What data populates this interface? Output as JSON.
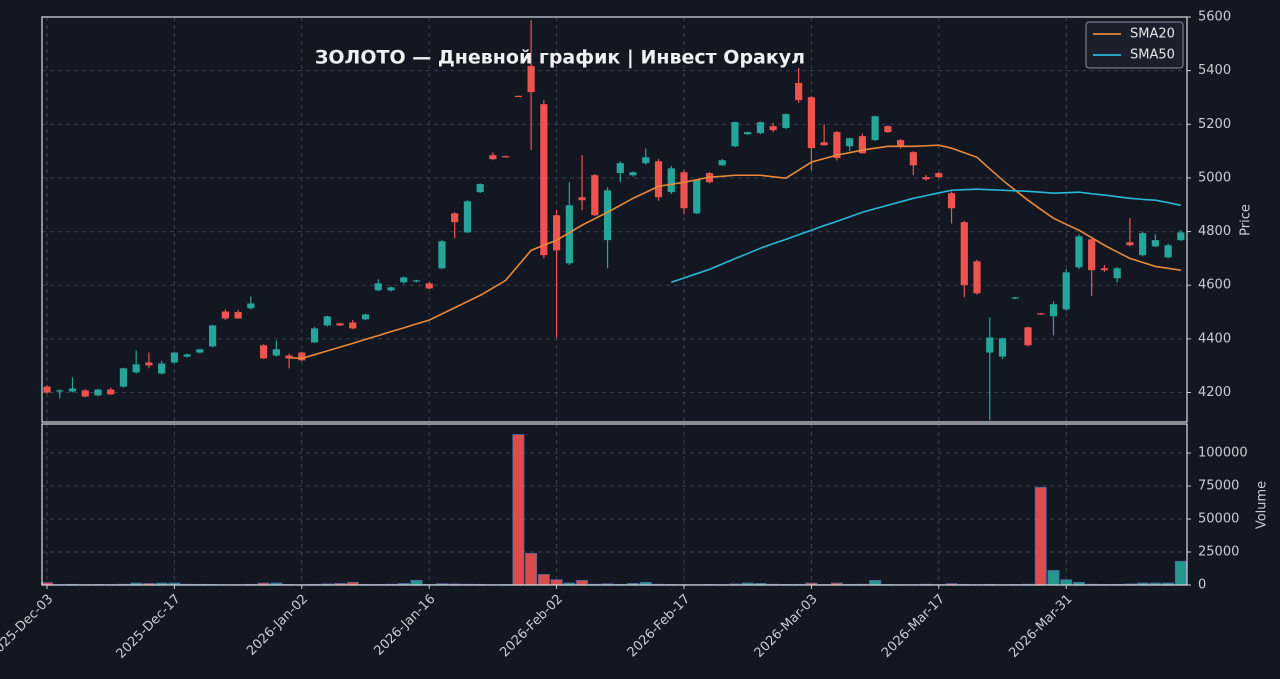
{
  "chart_data": {
    "type": "candlestick",
    "title": "ЗОЛОТО  —  Дневной график  |  Инвест Оракул",
    "ylabel": "Price",
    "up_color": "#26a69a",
    "down_color": "#ef5350",
    "grid": true,
    "legend": "upper right",
    "categories": [
      "2025-Dec-03",
      null,
      null,
      null,
      null,
      null,
      null,
      null,
      null,
      null,
      "2025-Dec-17",
      null,
      null,
      null,
      null,
      null,
      null,
      null,
      null,
      null,
      "2026-Jan-02",
      null,
      null,
      null,
      null,
      null,
      null,
      null,
      null,
      null,
      "2026-Jan-16",
      null,
      null,
      null,
      null,
      null,
      null,
      null,
      null,
      null,
      "2026-Feb-02",
      null,
      null,
      null,
      null,
      null,
      null,
      null,
      null,
      null,
      "2026-Feb-17",
      null,
      null,
      null,
      null,
      null,
      null,
      null,
      null,
      null,
      "2026-Mar-03",
      null,
      null,
      null,
      null,
      null,
      null,
      null,
      null,
      null,
      "2026-Mar-17",
      null,
      null,
      null,
      null,
      null,
      null,
      null,
      null,
      null,
      "2026-Mar-31",
      null,
      null,
      null,
      null,
      null,
      null,
      null,
      null,
      null
    ],
    "ylim": [
      4090,
      5600
    ],
    "yticks": [
      4200,
      4400,
      4600,
      4800,
      5000,
      5200,
      5400,
      5600
    ],
    "ohlc": [
      [
        4222,
        4228,
        4196,
        4200
      ],
      [
        4206,
        4212,
        4178,
        4208
      ],
      [
        4204,
        4256,
        4200,
        4215
      ],
      [
        4208,
        4212,
        4182,
        4185
      ],
      [
        4189,
        4214,
        4186,
        4211
      ],
      [
        4211,
        4218,
        4190,
        4193
      ],
      [
        4222,
        4292,
        4218,
        4290
      ],
      [
        4275,
        4357,
        4270,
        4305
      ],
      [
        4312,
        4349,
        4290,
        4301
      ],
      [
        4271,
        4318,
        4268,
        4308
      ],
      [
        4312,
        4352,
        4308,
        4349
      ],
      [
        4334,
        4345,
        4330,
        4342
      ],
      [
        4349,
        4362,
        4346,
        4361
      ],
      [
        4372,
        4452,
        4368,
        4450
      ],
      [
        4502,
        4510,
        4470,
        4476
      ],
      [
        4500,
        4508,
        4474,
        4476
      ],
      [
        4514,
        4558,
        4510,
        4532
      ],
      [
        4376,
        4380,
        4325,
        4327
      ],
      [
        4338,
        4394,
        4334,
        4361
      ],
      [
        4338,
        4345,
        4290,
        4327
      ],
      [
        4349,
        4352,
        4318,
        4320
      ],
      [
        4387,
        4445,
        4384,
        4439
      ],
      [
        4450,
        4486,
        4446,
        4484
      ],
      [
        4458,
        4460,
        4448,
        4450
      ],
      [
        4461,
        4470,
        4436,
        4439
      ],
      [
        4473,
        4494,
        4470,
        4491
      ],
      [
        4581,
        4622,
        4578,
        4607
      ],
      [
        4581,
        4596,
        4576,
        4592
      ],
      [
        4611,
        4632,
        4606,
        4629
      ],
      [
        4614,
        4620,
        4610,
        4618
      ],
      [
        4607,
        4612,
        4586,
        4588
      ],
      [
        4663,
        4768,
        4660,
        4764
      ],
      [
        4868,
        4872,
        4775,
        4835
      ],
      [
        4797,
        4917,
        4794,
        4913
      ],
      [
        4947,
        4980,
        4943,
        4977
      ],
      [
        5085,
        5095,
        5066,
        5070
      ],
      [
        5081,
        5084,
        5077,
        5079
      ],
      [
        5306,
        5308,
        5302,
        5304
      ],
      [
        5417,
        5589,
        5104,
        5320
      ],
      [
        5275,
        5290,
        4700,
        4712
      ],
      [
        4861,
        4880,
        4405,
        4730
      ],
      [
        4682,
        4984,
        4675,
        4898
      ],
      [
        4928,
        5085,
        4880,
        4917
      ],
      [
        5010,
        5015,
        4858,
        4861
      ],
      [
        4768,
        4965,
        4663,
        4954
      ],
      [
        5018,
        5062,
        4985,
        5055
      ],
      [
        5010,
        5025,
        5005,
        5021
      ],
      [
        5055,
        5110,
        5050,
        5077
      ],
      [
        5062,
        5070,
        4915,
        4928
      ],
      [
        4947,
        5045,
        4940,
        5036
      ],
      [
        5021,
        5030,
        4865,
        4887
      ],
      [
        4868,
        4995,
        4865,
        4992
      ],
      [
        5018,
        5022,
        4980,
        4984
      ],
      [
        5047,
        5070,
        5045,
        5066
      ],
      [
        5118,
        5210,
        5115,
        5208
      ],
      [
        5163,
        5172,
        5160,
        5171
      ],
      [
        5167,
        5210,
        5163,
        5208
      ],
      [
        5193,
        5205,
        5170,
        5178
      ],
      [
        5186,
        5240,
        5182,
        5238
      ],
      [
        5354,
        5410,
        5280,
        5290
      ],
      [
        5301,
        5305,
        5030,
        5111
      ],
      [
        5133,
        5200,
        5120,
        5122
      ],
      [
        5171,
        5175,
        5065,
        5074
      ],
      [
        5118,
        5150,
        5100,
        5148
      ],
      [
        5156,
        5165,
        5090,
        5092
      ],
      [
        5141,
        5232,
        5138,
        5230
      ],
      [
        5193,
        5196,
        5168,
        5171
      ],
      [
        5141,
        5145,
        5110,
        5118
      ],
      [
        5096,
        5100,
        5010,
        5047
      ],
      [
        5003,
        5010,
        4990,
        4995
      ],
      [
        5018,
        5022,
        5000,
        5003
      ],
      [
        4943,
        4950,
        4830,
        4887
      ],
      [
        4835,
        4840,
        4555,
        4600
      ],
      [
        4689,
        4695,
        4565,
        4570
      ],
      [
        4349,
        4480,
        4096,
        4405
      ],
      [
        4334,
        4405,
        4325,
        4402
      ],
      [
        4551,
        4556,
        4548,
        4555
      ],
      [
        4443,
        4446,
        4372,
        4376
      ],
      [
        4495,
        4497,
        4490,
        4491
      ],
      [
        4484,
        4540,
        4413,
        4529
      ],
      [
        4510,
        4660,
        4505,
        4648
      ],
      [
        4667,
        4790,
        4660,
        4782
      ],
      [
        4771,
        4775,
        4560,
        4656
      ],
      [
        4663,
        4675,
        4650,
        4656
      ],
      [
        4626,
        4668,
        4610,
        4663
      ],
      [
        4760,
        4850,
        4745,
        4749
      ],
      [
        4712,
        4800,
        4708,
        4794
      ],
      [
        4745,
        4790,
        4742,
        4768
      ],
      [
        4704,
        4755,
        4700,
        4749
      ],
      [
        4768,
        4805,
        4765,
        4797
      ]
    ],
    "lines": [
      {
        "name": "SMA20",
        "color": "#e8893a",
        "values": [
          null,
          null,
          null,
          null,
          null,
          null,
          null,
          null,
          null,
          null,
          null,
          null,
          null,
          null,
          null,
          null,
          null,
          null,
          null,
          4330,
          4327,
          4341,
          4355,
          4369,
          4383,
          4398,
          4412,
          4427,
          4441,
          4456,
          4470,
          4493,
          4516,
          4539,
          4562,
          4590,
          4618,
          4674,
          4730,
          4749,
          4768,
          4796,
          4824,
          4848,
          4872,
          4898,
          4924,
          4946,
          4969,
          4976,
          4984,
          4993,
          5003,
          5006,
          5010,
          5010,
          5010,
          5004,
          4999,
          5029,
          5059,
          5072,
          5085,
          5094,
          5104,
          5111,
          5118,
          5118,
          5118,
          5120,
          5122,
          5111,
          5094,
          5077,
          5034,
          4992,
          4954,
          4917,
          4883,
          4850,
          4827,
          4805,
          4777,
          4749,
          4724,
          4700,
          4685,
          4670,
          4663,
          4656
        ]
      },
      {
        "name": "SMA50",
        "color": "#2bb8d8",
        "values": [
          null,
          null,
          null,
          null,
          null,
          null,
          null,
          null,
          null,
          null,
          null,
          null,
          null,
          null,
          null,
          null,
          null,
          null,
          null,
          null,
          null,
          null,
          null,
          null,
          null,
          null,
          null,
          null,
          null,
          null,
          null,
          null,
          null,
          null,
          null,
          null,
          null,
          null,
          null,
          null,
          null,
          null,
          null,
          null,
          null,
          null,
          null,
          null,
          null,
          4611,
          4627,
          4643,
          4659,
          4679,
          4699,
          4718,
          4738,
          4755,
          4771,
          4788,
          4805,
          4822,
          4838,
          4855,
          4872,
          4885,
          4898,
          4911,
          4924,
          4934,
          4944,
          4954,
          4956,
          4958,
          4956,
          4954,
          4952,
          4950,
          4947,
          4943,
          4945,
          4947,
          4941,
          4936,
          4930,
          4924,
          4920,
          4917,
          4908,
          4898
        ]
      }
    ],
    "volume": {
      "ylabel": "Volume",
      "ylim": [
        0,
        122000
      ],
      "yticks": [
        0,
        25000,
        50000,
        75000,
        100000
      ],
      "values": [
        1800,
        300,
        500,
        300,
        400,
        300,
        600,
        1500,
        1200,
        1500,
        1500,
        600,
        500,
        400,
        300,
        300,
        500,
        1500,
        1500,
        400,
        300,
        500,
        800,
        1200,
        2000,
        500,
        400,
        600,
        1200,
        3500,
        400,
        1000,
        800,
        600,
        500,
        300,
        400,
        114000,
        24000,
        8000,
        4000,
        1500,
        3500,
        600,
        900,
        500,
        1200,
        2000,
        600,
        400,
        300,
        300,
        400,
        300,
        800,
        1500,
        1200,
        600,
        400,
        500,
        1500,
        400,
        1500,
        500,
        600,
        3500,
        400,
        300,
        300,
        600,
        300,
        1000,
        500,
        300,
        500,
        300,
        400,
        600,
        74000,
        11000,
        4000,
        2000,
        600,
        400,
        500,
        800,
        1500,
        1500,
        1500,
        18000
      ]
    }
  }
}
